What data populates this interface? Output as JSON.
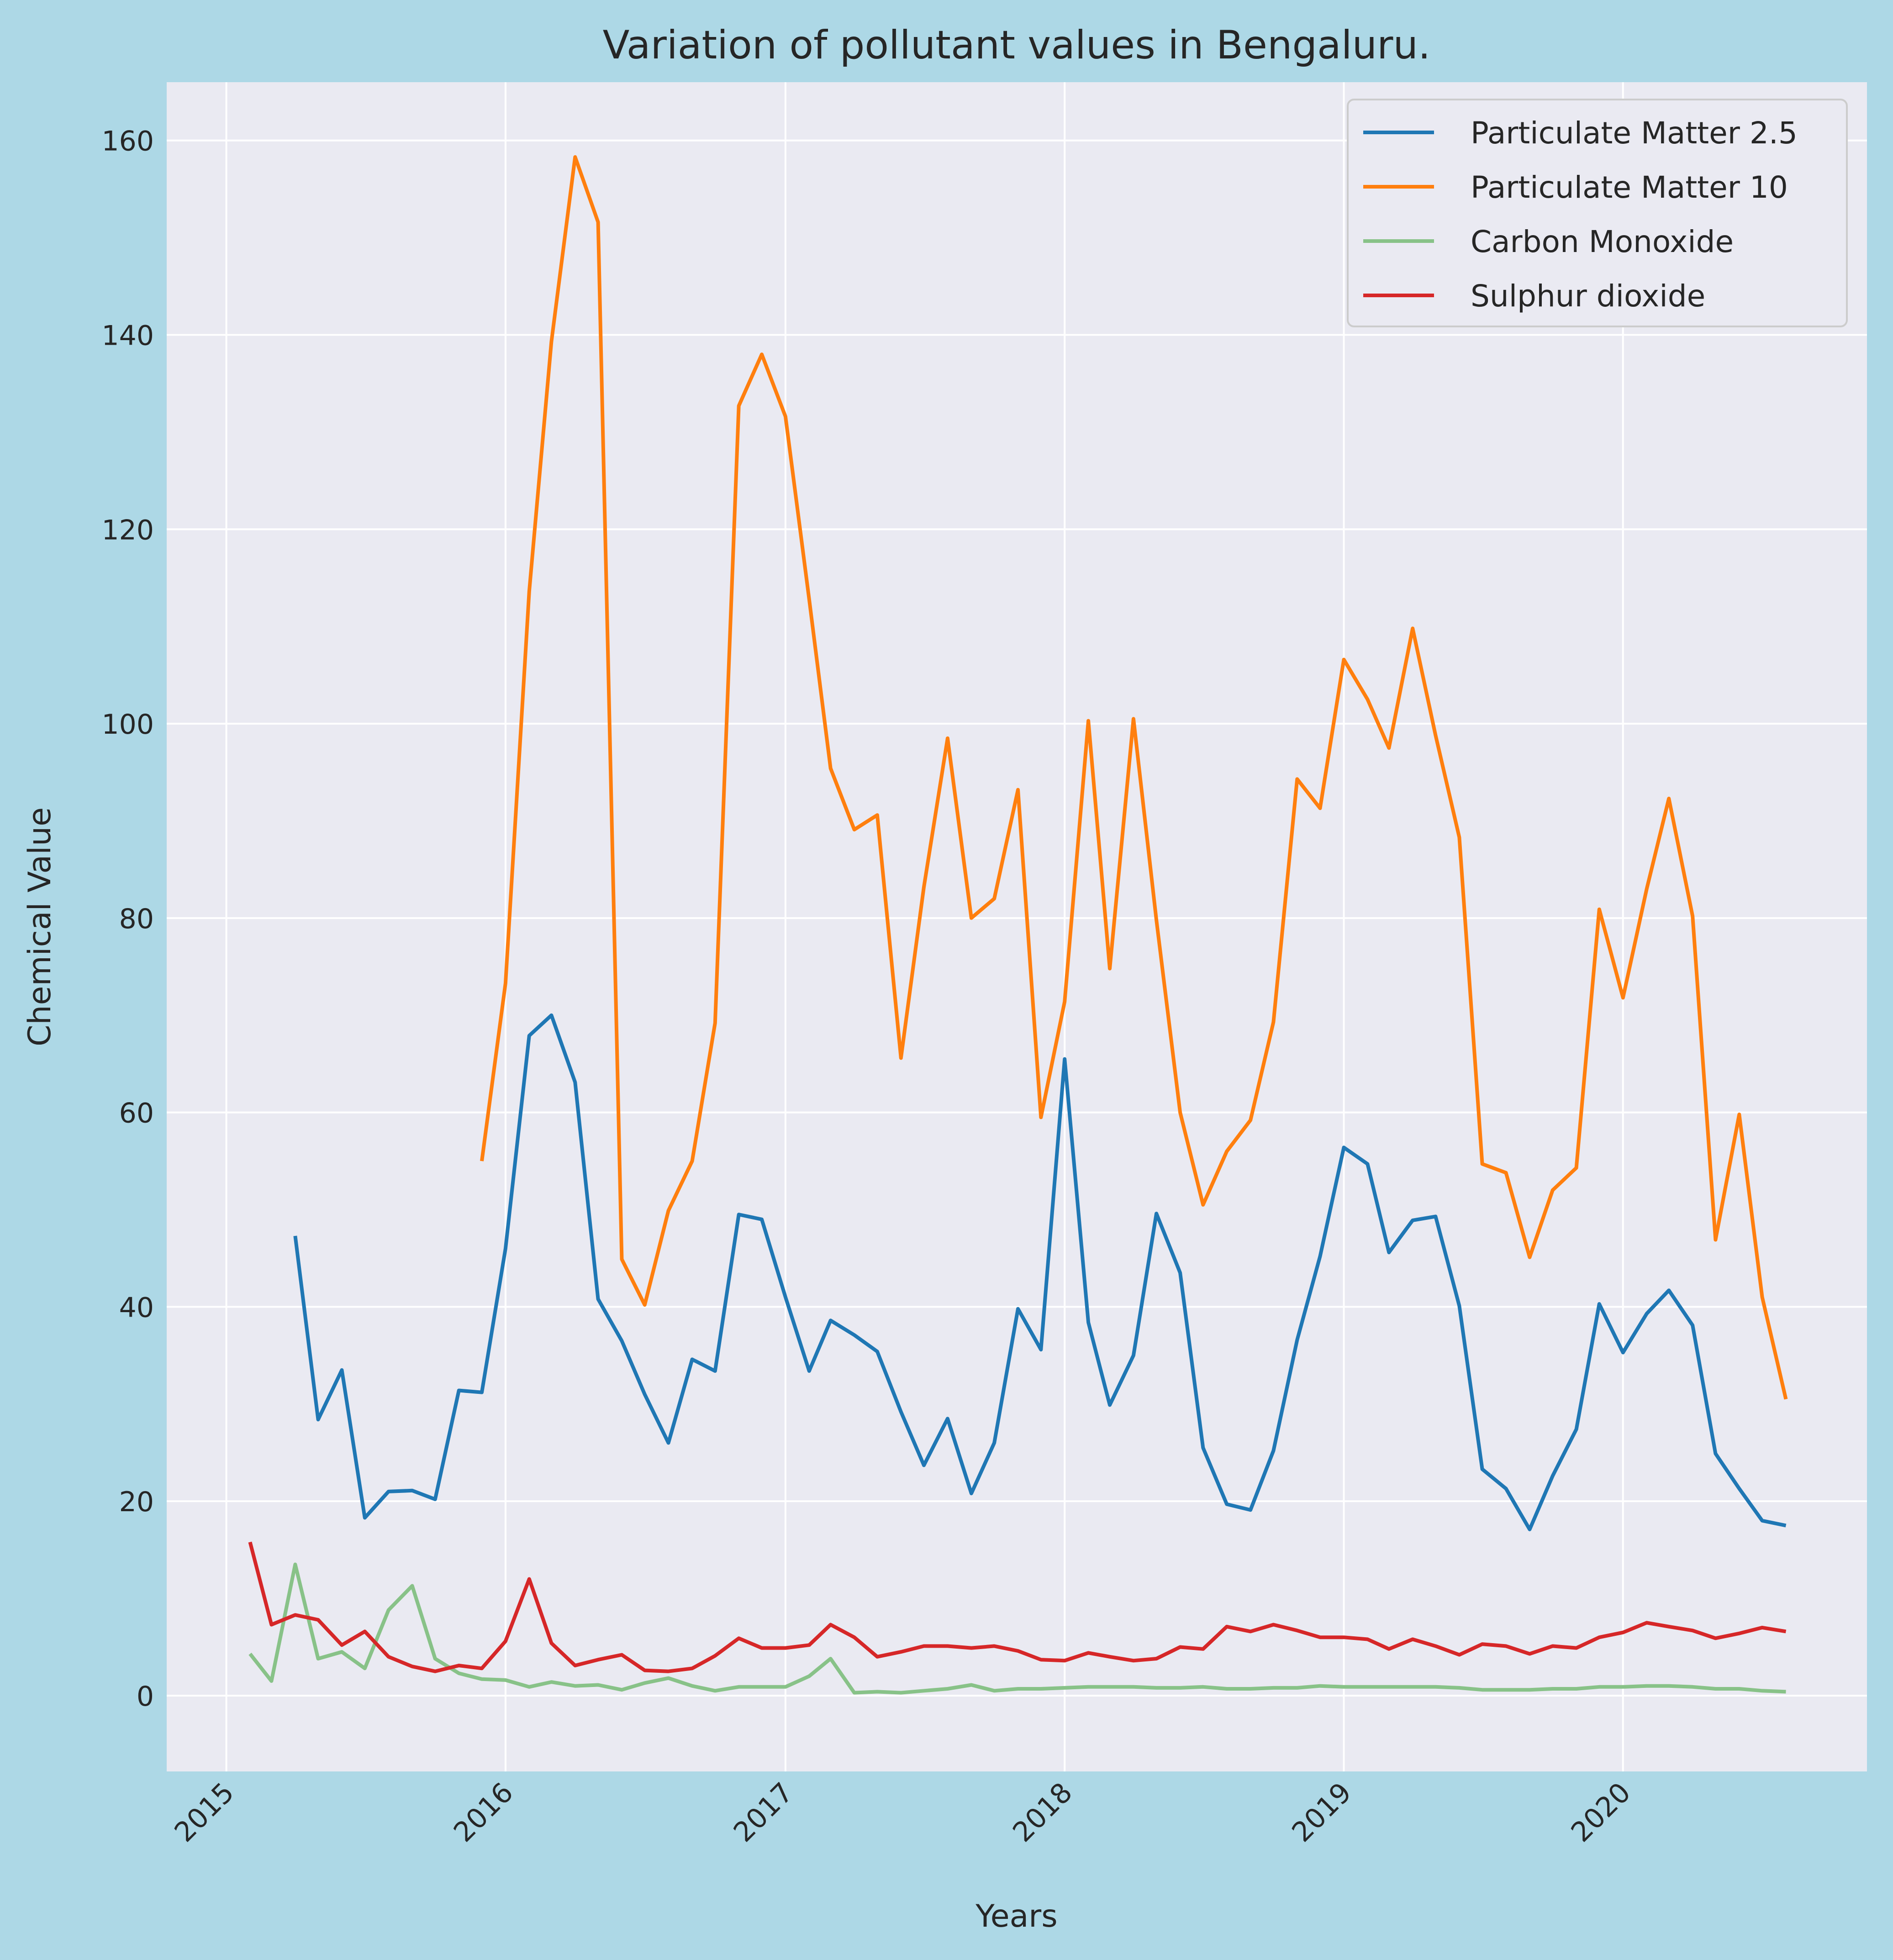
{
  "chart_data": {
    "type": "line",
    "title": "Variation of pollutant values in Bengaluru.",
    "xlabel": "Years",
    "ylabel": "Chemical Value",
    "x_ticks": [
      "2015",
      "2016",
      "2017",
      "2018",
      "2019",
      "2020"
    ],
    "y_ticks": [
      "0",
      "20",
      "40",
      "60",
      "80",
      "100",
      "120",
      "140",
      "160"
    ],
    "xlim": [
      "2014-10-15",
      "2020-11-15"
    ],
    "ylim": [
      -7.8,
      166
    ],
    "grid": true,
    "legend_position": "top-right",
    "background_color": "#add8e6",
    "axes_color": "#eaeaf2",
    "x": [
      "2015-02",
      "2015-03",
      "2015-04",
      "2015-05",
      "2015-06",
      "2015-07",
      "2015-08",
      "2015-09",
      "2015-10",
      "2015-11",
      "2015-12",
      "2016-01",
      "2016-02",
      "2016-03",
      "2016-04",
      "2016-05",
      "2016-06",
      "2016-07",
      "2016-08",
      "2016-09",
      "2016-10",
      "2016-11",
      "2016-12",
      "2017-01",
      "2017-02",
      "2017-03",
      "2017-04",
      "2017-05",
      "2017-06",
      "2017-07",
      "2017-08",
      "2017-09",
      "2017-10",
      "2017-11",
      "2017-12",
      "2018-01",
      "2018-02",
      "2018-03",
      "2018-04",
      "2018-05",
      "2018-06",
      "2018-07",
      "2018-08",
      "2018-09",
      "2018-10",
      "2018-11",
      "2018-12",
      "2019-01",
      "2019-02",
      "2019-03",
      "2019-04",
      "2019-05",
      "2019-06",
      "2019-07",
      "2019-08",
      "2019-09",
      "2019-10",
      "2019-11",
      "2019-12",
      "2020-01",
      "2020-02",
      "2020-03",
      "2020-04",
      "2020-05",
      "2020-06",
      "2020-07",
      "2020-08"
    ],
    "series": [
      {
        "name": "Particulate Matter 2.5",
        "color": "#1f77b4",
        "values": [
          null,
          null,
          47.3,
          28.4,
          33.5,
          18.3,
          21.0,
          21.1,
          20.2,
          31.4,
          31.2,
          46.0,
          67.9,
          70.0,
          63.1,
          40.8,
          36.5,
          31.0,
          26.0,
          34.6,
          33.4,
          49.5,
          49.0,
          41.0,
          33.4,
          38.6,
          37.1,
          35.4,
          29.2,
          23.7,
          28.5,
          20.8,
          26.0,
          39.8,
          35.6,
          65.5,
          38.4,
          29.9,
          35.0,
          49.6,
          43.5,
          25.5,
          19.7,
          19.1,
          25.2,
          36.6,
          45.2,
          56.4,
          54.7,
          45.6,
          48.9,
          49.3,
          40.1,
          23.3,
          21.3,
          17.1,
          22.6,
          27.4,
          40.3,
          35.3,
          39.3,
          41.7,
          38.1,
          24.9,
          21.3,
          18.0,
          17.5
        ]
      },
      {
        "name": "Particulate Matter 10",
        "color": "#ff7f0e",
        "values": [
          null,
          null,
          null,
          null,
          null,
          null,
          null,
          null,
          null,
          null,
          55.0,
          73.3,
          113.6,
          139.3,
          158.3,
          151.6,
          44.9,
          40.2,
          49.9,
          55.0,
          69.2,
          132.7,
          138.0,
          131.6,
          112.8,
          95.4,
          89.1,
          90.6,
          65.6,
          83.2,
          98.5,
          80.0,
          82.0,
          93.2,
          59.5,
          71.4,
          100.3,
          74.8,
          100.5,
          79.8,
          60.0,
          50.5,
          56.0,
          59.2,
          69.3,
          94.3,
          91.3,
          106.6,
          102.5,
          97.5,
          109.8,
          98.8,
          88.3,
          54.7,
          53.8,
          45.1,
          52.0,
          54.3,
          80.9,
          71.8,
          83.0,
          92.3,
          80.2,
          46.9,
          59.8,
          41.0,
          30.5
        ]
      },
      {
        "name": "Carbon Monoxide",
        "color": "#88c288",
        "values": [
          4.3,
          1.5,
          13.5,
          3.8,
          4.5,
          2.8,
          8.8,
          11.3,
          3.8,
          2.3,
          1.7,
          1.6,
          0.9,
          1.4,
          1.0,
          1.1,
          0.6,
          1.3,
          1.8,
          1.0,
          0.5,
          0.9,
          0.9,
          0.9,
          2.0,
          3.8,
          0.3,
          0.4,
          0.3,
          0.5,
          0.7,
          1.1,
          0.5,
          0.7,
          0.7,
          0.8,
          0.9,
          0.9,
          0.9,
          0.8,
          0.8,
          0.9,
          0.7,
          0.7,
          0.8,
          0.8,
          1.0,
          0.9,
          0.9,
          0.9,
          0.9,
          0.9,
          0.8,
          0.6,
          0.6,
          0.6,
          0.7,
          0.7,
          0.9,
          0.9,
          1.0,
          1.0,
          0.9,
          0.7,
          0.7,
          0.5,
          0.4
        ]
      },
      {
        "name": "Sulphur dioxide",
        "color": "#d62728",
        "values": [
          15.8,
          7.3,
          8.3,
          7.8,
          5.2,
          6.6,
          4.0,
          3.0,
          2.5,
          3.1,
          2.8,
          5.6,
          12.0,
          5.4,
          3.1,
          3.7,
          4.2,
          2.6,
          2.5,
          2.8,
          4.1,
          5.9,
          4.9,
          4.9,
          5.2,
          7.3,
          6.0,
          4.0,
          4.5,
          5.1,
          5.1,
          4.9,
          5.1,
          4.6,
          3.7,
          3.6,
          4.4,
          4.0,
          3.6,
          3.8,
          5.0,
          4.8,
          7.1,
          6.6,
          7.3,
          6.7,
          6.0,
          6.0,
          5.8,
          4.8,
          5.8,
          5.1,
          4.2,
          5.3,
          5.1,
          4.3,
          5.1,
          4.9,
          6.0,
          6.5,
          7.5,
          7.1,
          6.7,
          5.9,
          6.4,
          7.0,
          6.6
        ]
      }
    ]
  }
}
